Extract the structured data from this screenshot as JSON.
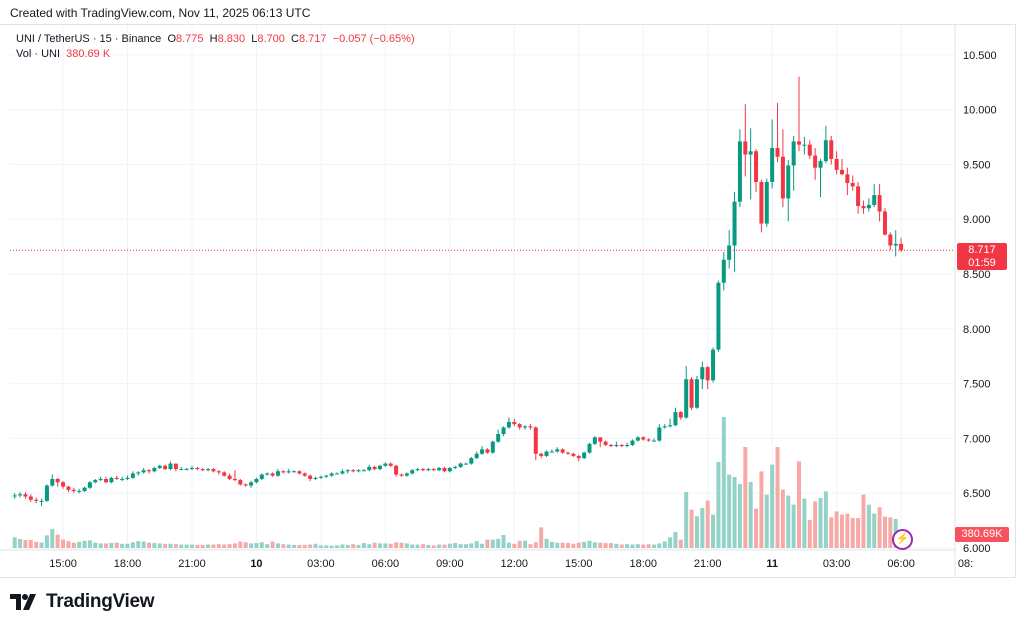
{
  "credit": "Created with TradingView.com, Nov 11, 2025 06:13 UTC",
  "legend": {
    "symbol": "UNI / TetherUS · 15 · Binance",
    "o_label": "O",
    "o": "8.775",
    "h_label": "H",
    "h": "8.830",
    "l_label": "L",
    "l": "8.700",
    "c_label": "C",
    "c": "8.717",
    "change": "−0.057 (−0.65%)",
    "vol_label": "Vol · UNI",
    "vol": "380.69 K"
  },
  "price_tag": {
    "price": "8.717",
    "countdown": "01:59"
  },
  "volume_tag": "380.69K",
  "logo": {
    "text": "TradingView",
    "mark": "17"
  },
  "colors": {
    "up": "#089981",
    "down": "#f23645",
    "up_volume": "#92d2c7",
    "down_volume": "#f7a9a7",
    "last_price": "#f23645",
    "grid": "#f0f3fa",
    "alert_icon": "#9c27b0"
  },
  "icons": {
    "alert": "lightning-bolt-icon"
  },
  "chart_data": {
    "type": "candlestick",
    "interval": "15",
    "ylim": [
      6.0,
      10.5
    ],
    "yticks": [
      "10.500",
      "10.000",
      "9.500",
      "9.000",
      "8.500",
      "8.000",
      "7.500",
      "7.000",
      "6.500",
      "6.000"
    ],
    "xticks": [
      "15:00",
      "18:00",
      "21:00",
      "10",
      "03:00",
      "06:00",
      "09:00",
      "12:00",
      "15:00",
      "18:00",
      "21:00",
      "11",
      "03:00",
      "06:00",
      "08:"
    ],
    "grid": true,
    "last_price": 8.717,
    "ohlc": [
      [
        6.47,
        6.5,
        6.45,
        6.48
      ],
      [
        6.48,
        6.51,
        6.46,
        6.49
      ],
      [
        6.49,
        6.51,
        6.45,
        6.47
      ],
      [
        6.47,
        6.49,
        6.42,
        6.44
      ],
      [
        6.44,
        6.46,
        6.41,
        6.43
      ],
      [
        6.43,
        6.45,
        6.38,
        6.43
      ],
      [
        6.43,
        6.58,
        6.42,
        6.57
      ],
      [
        6.57,
        6.67,
        6.56,
        6.63
      ],
      [
        6.63,
        6.64,
        6.56,
        6.6
      ],
      [
        6.6,
        6.61,
        6.54,
        6.56
      ],
      [
        6.56,
        6.57,
        6.51,
        6.53
      ],
      [
        6.53,
        6.55,
        6.5,
        6.52
      ],
      [
        6.52,
        6.54,
        6.5,
        6.52
      ],
      [
        6.52,
        6.56,
        6.51,
        6.55
      ],
      [
        6.55,
        6.61,
        6.54,
        6.6
      ],
      [
        6.6,
        6.63,
        6.59,
        6.62
      ],
      [
        6.62,
        6.65,
        6.61,
        6.63
      ],
      [
        6.63,
        6.65,
        6.59,
        6.6
      ],
      [
        6.6,
        6.65,
        6.59,
        6.64
      ],
      [
        6.64,
        6.66,
        6.62,
        6.63
      ],
      [
        6.63,
        6.65,
        6.61,
        6.63
      ],
      [
        6.63,
        6.66,
        6.62,
        6.64
      ],
      [
        6.64,
        6.7,
        6.63,
        6.68
      ],
      [
        6.68,
        6.7,
        6.66,
        6.69
      ],
      [
        6.69,
        6.73,
        6.68,
        6.71
      ],
      [
        6.71,
        6.72,
        6.68,
        6.7
      ],
      [
        6.7,
        6.74,
        6.69,
        6.73
      ],
      [
        6.73,
        6.76,
        6.72,
        6.75
      ],
      [
        6.75,
        6.76,
        6.71,
        6.72
      ],
      [
        6.72,
        6.79,
        6.71,
        6.77
      ],
      [
        6.77,
        6.77,
        6.7,
        6.72
      ],
      [
        6.72,
        6.74,
        6.71,
        6.72
      ],
      [
        6.72,
        6.73,
        6.71,
        6.72
      ],
      [
        6.72,
        6.75,
        6.71,
        6.73
      ],
      [
        6.73,
        6.74,
        6.71,
        6.72
      ],
      [
        6.72,
        6.73,
        6.7,
        6.71
      ],
      [
        6.71,
        6.73,
        6.7,
        6.72
      ],
      [
        6.72,
        6.73,
        6.69,
        6.7
      ],
      [
        6.7,
        6.71,
        6.67,
        6.69
      ],
      [
        6.69,
        6.7,
        6.65,
        6.66
      ],
      [
        6.66,
        6.68,
        6.62,
        6.63
      ],
      [
        6.63,
        6.71,
        6.61,
        6.62
      ],
      [
        6.62,
        6.63,
        6.57,
        6.58
      ],
      [
        6.58,
        6.59,
        6.56,
        6.57
      ],
      [
        6.57,
        6.61,
        6.55,
        6.6
      ],
      [
        6.6,
        6.64,
        6.59,
        6.63
      ],
      [
        6.63,
        6.68,
        6.62,
        6.67
      ],
      [
        6.67,
        6.69,
        6.66,
        6.68
      ],
      [
        6.68,
        6.69,
        6.65,
        6.66
      ],
      [
        6.66,
        6.72,
        6.65,
        6.7
      ],
      [
        6.7,
        6.71,
        6.68,
        6.69
      ],
      [
        6.69,
        6.72,
        6.68,
        6.7
      ],
      [
        6.7,
        6.71,
        6.69,
        6.7
      ],
      [
        6.7,
        6.71,
        6.67,
        6.68
      ],
      [
        6.68,
        6.69,
        6.65,
        6.66
      ],
      [
        6.66,
        6.67,
        6.61,
        6.63
      ],
      [
        6.63,
        6.65,
        6.62,
        6.64
      ],
      [
        6.64,
        6.66,
        6.63,
        6.65
      ],
      [
        6.65,
        6.67,
        6.64,
        6.66
      ],
      [
        6.66,
        6.69,
        6.65,
        6.68
      ],
      [
        6.68,
        6.69,
        6.67,
        6.68
      ],
      [
        6.68,
        6.72,
        6.67,
        6.7
      ],
      [
        6.7,
        6.72,
        6.68,
        6.71
      ],
      [
        6.71,
        6.72,
        6.69,
        6.7
      ],
      [
        6.7,
        6.72,
        6.69,
        6.71
      ],
      [
        6.71,
        6.72,
        6.7,
        6.71
      ],
      [
        6.71,
        6.76,
        6.7,
        6.74
      ],
      [
        6.74,
        6.75,
        6.71,
        6.72
      ],
      [
        6.72,
        6.76,
        6.71,
        6.75
      ],
      [
        6.75,
        6.78,
        6.74,
        6.77
      ],
      [
        6.77,
        6.78,
        6.74,
        6.75
      ],
      [
        6.75,
        6.76,
        6.65,
        6.67
      ],
      [
        6.67,
        6.68,
        6.65,
        6.66
      ],
      [
        6.66,
        6.69,
        6.65,
        6.68
      ],
      [
        6.68,
        6.72,
        6.67,
        6.71
      ],
      [
        6.71,
        6.73,
        6.7,
        6.72
      ],
      [
        6.72,
        6.73,
        6.7,
        6.71
      ],
      [
        6.71,
        6.73,
        6.7,
        6.72
      ],
      [
        6.72,
        6.73,
        6.7,
        6.71
      ],
      [
        6.71,
        6.74,
        6.7,
        6.73
      ],
      [
        6.73,
        6.74,
        6.69,
        6.7
      ],
      [
        6.7,
        6.74,
        6.69,
        6.73
      ],
      [
        6.73,
        6.75,
        6.72,
        6.74
      ],
      [
        6.74,
        6.78,
        6.73,
        6.77
      ],
      [
        6.77,
        6.78,
        6.76,
        6.77
      ],
      [
        6.77,
        6.83,
        6.76,
        6.82
      ],
      [
        6.82,
        6.88,
        6.81,
        6.86
      ],
      [
        6.86,
        6.93,
        6.85,
        6.9
      ],
      [
        6.9,
        6.91,
        6.86,
        6.87
      ],
      [
        6.87,
        6.98,
        6.86,
        6.97
      ],
      [
        6.97,
        7.08,
        6.96,
        7.04
      ],
      [
        7.04,
        7.11,
        7.02,
        7.1
      ],
      [
        7.1,
        7.19,
        7.09,
        7.15
      ],
      [
        7.15,
        7.18,
        7.11,
        7.13
      ],
      [
        7.13,
        7.14,
        7.08,
        7.1
      ],
      [
        7.1,
        7.12,
        7.08,
        7.11
      ],
      [
        7.11,
        7.13,
        7.08,
        7.1
      ],
      [
        7.1,
        7.11,
        6.8,
        6.86
      ],
      [
        6.86,
        6.87,
        6.82,
        6.84
      ],
      [
        6.84,
        6.89,
        6.83,
        6.88
      ],
      [
        6.88,
        6.9,
        6.87,
        6.88
      ],
      [
        6.88,
        6.92,
        6.87,
        6.9
      ],
      [
        6.9,
        6.91,
        6.86,
        6.87
      ],
      [
        6.87,
        6.88,
        6.85,
        6.86
      ],
      [
        6.86,
        6.87,
        6.83,
        6.84
      ],
      [
        6.84,
        6.85,
        6.79,
        6.82
      ],
      [
        6.82,
        6.88,
        6.81,
        6.87
      ],
      [
        6.87,
        6.96,
        6.86,
        6.95
      ],
      [
        6.95,
        7.02,
        6.94,
        7.01
      ],
      [
        7.01,
        7.01,
        6.92,
        6.97
      ],
      [
        6.97,
        6.98,
        6.93,
        6.94
      ],
      [
        6.94,
        6.95,
        6.92,
        6.93
      ],
      [
        6.93,
        6.97,
        6.92,
        6.94
      ],
      [
        6.94,
        6.95,
        6.92,
        6.93
      ],
      [
        6.93,
        6.96,
        6.92,
        6.94
      ],
      [
        6.94,
        6.99,
        6.93,
        6.98
      ],
      [
        6.98,
        7.02,
        6.97,
        7.01
      ],
      [
        7.01,
        7.02,
        6.98,
        6.99
      ],
      [
        6.99,
        7.0,
        6.97,
        6.98
      ],
      [
        6.98,
        7.0,
        6.97,
        6.98
      ],
      [
        6.98,
        7.13,
        6.97,
        7.1
      ],
      [
        7.1,
        7.13,
        7.09,
        7.11
      ],
      [
        7.11,
        7.18,
        7.1,
        7.12
      ],
      [
        7.12,
        7.28,
        7.11,
        7.24
      ],
      [
        7.24,
        7.25,
        7.17,
        7.19
      ],
      [
        7.19,
        7.66,
        7.18,
        7.54
      ],
      [
        7.54,
        7.56,
        7.26,
        7.28
      ],
      [
        7.28,
        7.57,
        7.27,
        7.54
      ],
      [
        7.54,
        7.7,
        7.45,
        7.65
      ],
      [
        7.65,
        7.66,
        7.45,
        7.53
      ],
      [
        7.53,
        7.83,
        7.51,
        7.81
      ],
      [
        7.81,
        8.44,
        7.79,
        8.42
      ],
      [
        8.42,
        8.7,
        8.35,
        8.63
      ],
      [
        8.63,
        8.9,
        8.55,
        8.76
      ],
      [
        8.76,
        9.25,
        8.52,
        9.16
      ],
      [
        9.16,
        9.82,
        9.11,
        9.71
      ],
      [
        9.71,
        10.05,
        9.39,
        9.59
      ],
      [
        9.59,
        9.83,
        9.18,
        9.62
      ],
      [
        9.62,
        9.64,
        9.25,
        9.34
      ],
      [
        9.34,
        9.36,
        8.88,
        8.96
      ],
      [
        8.96,
        9.37,
        8.93,
        9.34
      ],
      [
        9.34,
        9.91,
        9.28,
        9.65
      ],
      [
        9.65,
        10.06,
        9.52,
        9.57
      ],
      [
        9.57,
        9.82,
        9.11,
        9.19
      ],
      [
        9.19,
        9.54,
        8.98,
        9.49
      ],
      [
        9.49,
        9.76,
        9.26,
        9.71
      ],
      [
        9.71,
        10.3,
        9.62,
        9.68
      ],
      [
        9.68,
        9.75,
        9.59,
        9.68
      ],
      [
        9.68,
        9.72,
        9.55,
        9.58
      ],
      [
        9.58,
        9.65,
        9.36,
        9.47
      ],
      [
        9.47,
        9.55,
        9.2,
        9.53
      ],
      [
        9.53,
        9.85,
        9.51,
        9.72
      ],
      [
        9.72,
        9.76,
        9.5,
        9.55
      ],
      [
        9.55,
        9.62,
        9.41,
        9.45
      ],
      [
        9.45,
        9.55,
        9.4,
        9.41
      ],
      [
        9.41,
        9.47,
        9.22,
        9.33
      ],
      [
        9.33,
        9.4,
        9.26,
        9.3
      ],
      [
        9.3,
        9.34,
        9.05,
        9.12
      ],
      [
        9.12,
        9.17,
        9.05,
        9.1
      ],
      [
        9.1,
        9.19,
        9.07,
        9.13
      ],
      [
        9.13,
        9.32,
        9.11,
        9.22
      ],
      [
        9.22,
        9.32,
        8.98,
        9.07
      ],
      [
        9.07,
        9.1,
        8.85,
        8.86
      ],
      [
        8.86,
        8.88,
        8.72,
        8.76
      ],
      [
        8.76,
        8.9,
        8.66,
        8.775
      ],
      [
        8.775,
        8.83,
        8.7,
        8.717
      ]
    ],
    "volume_k": [
      140,
      118,
      105,
      105,
      80,
      72,
      166,
      250,
      175,
      110,
      90,
      70,
      80,
      95,
      100,
      70,
      60,
      60,
      65,
      70,
      55,
      55,
      75,
      90,
      85,
      70,
      65,
      60,
      55,
      55,
      50,
      45,
      45,
      45,
      40,
      40,
      45,
      45,
      50,
      45,
      50,
      60,
      85,
      75,
      60,
      65,
      75,
      50,
      85,
      60,
      50,
      45,
      40,
      40,
      40,
      45,
      55,
      35,
      35,
      30,
      35,
      45,
      40,
      50,
      40,
      65,
      50,
      70,
      60,
      60,
      55,
      75,
      70,
      60,
      45,
      45,
      50,
      40,
      35,
      45,
      45,
      55,
      65,
      50,
      50,
      60,
      90,
      55,
      110,
      110,
      120,
      170,
      70,
      55,
      95,
      95,
      50,
      75,
      270,
      120,
      80,
      70,
      70,
      65,
      55,
      70,
      80,
      95,
      75,
      70,
      65,
      65,
      55,
      45,
      50,
      45,
      50,
      45,
      50,
      45,
      60,
      87,
      140,
      210,
      110,
      734,
      502,
      415,
      524,
      620,
      437,
      1127,
      1716,
      961,
      930,
      838,
      1323,
      865,
      515,
      1004,
      699,
      1092,
      1323,
      764,
      686,
      568,
      1135,
      646,
      367,
      611,
      655,
      742,
      402,
      480,
      437,
      450,
      393,
      393,
      699,
      568,
      450,
      533,
      410,
      402,
      380.69
    ]
  }
}
